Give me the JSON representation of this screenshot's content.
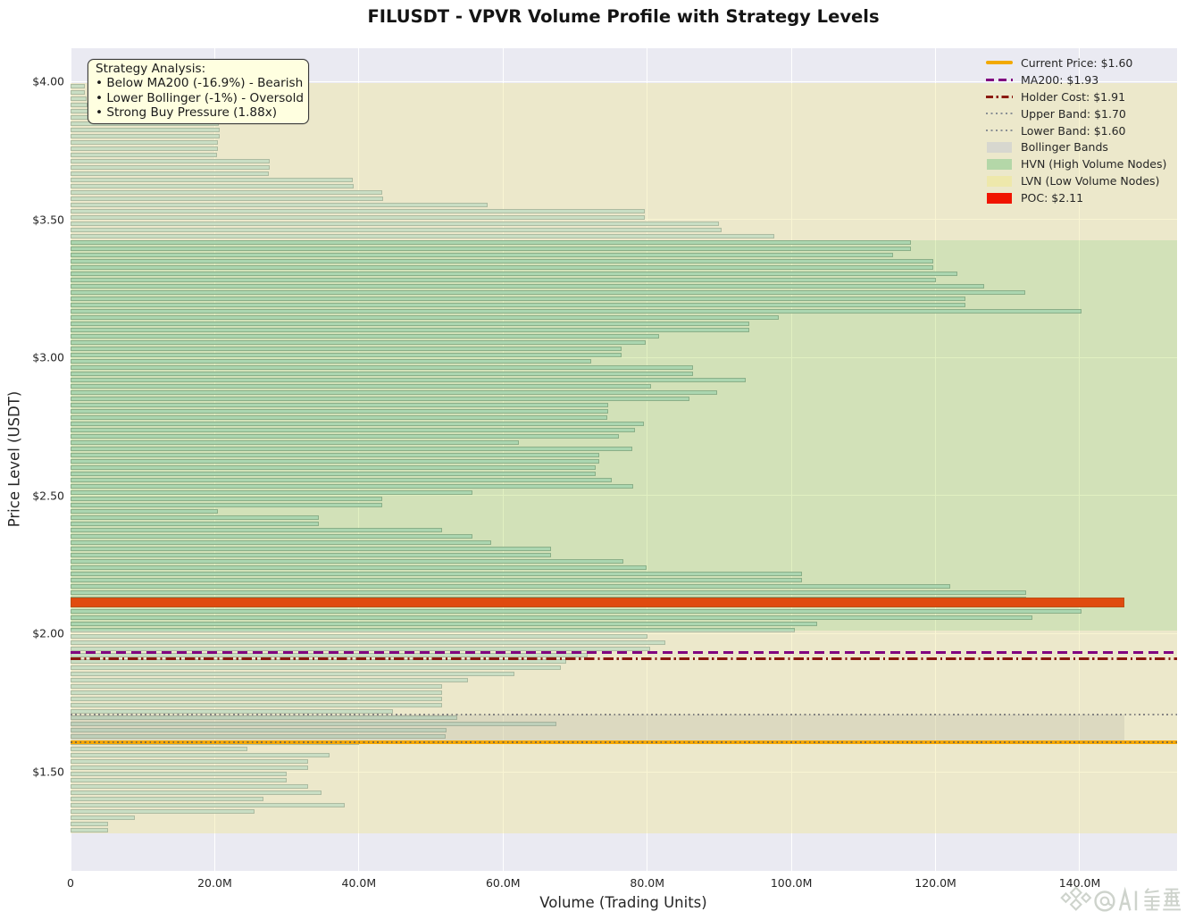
{
  "title": "FILUSDT - VPVR Volume Profile with Strategy Levels",
  "axes": {
    "xlabel": "Volume (Trading Units)",
    "ylabel": "Price Level (USDT)",
    "x_ticks": [
      {
        "value": 0,
        "label": "0"
      },
      {
        "value": 20,
        "label": "20.0M"
      },
      {
        "value": 40,
        "label": "40.0M"
      },
      {
        "value": 60,
        "label": "60.0M"
      },
      {
        "value": 80,
        "label": "80.0M"
      },
      {
        "value": 100,
        "label": "100.0M"
      },
      {
        "value": 120,
        "label": "120.0M"
      },
      {
        "value": 140,
        "label": "140.0M"
      }
    ],
    "y_ticks": [
      {
        "value": 1.5,
        "label": "$1.50"
      },
      {
        "value": 2.0,
        "label": "$2.00"
      },
      {
        "value": 2.5,
        "label": "$2.50"
      },
      {
        "value": 3.0,
        "label": "$3.00"
      },
      {
        "value": 3.5,
        "label": "$3.50"
      },
      {
        "value": 4.0,
        "label": "$4.00"
      }
    ]
  },
  "annotation": {
    "title": "Strategy Analysis:",
    "lines": [
      "• Below MA200 (-16.9%) - Bearish",
      "• Lower Bollinger (-1%) - Oversold",
      "• Strong Buy Pressure (1.88x)"
    ]
  },
  "legend": [
    {
      "kind": "line",
      "style": "solid",
      "color": "#f2a900",
      "weight": 4,
      "label": "Current Price: $1.60"
    },
    {
      "kind": "line",
      "style": "dashed",
      "color": "#800080",
      "weight": 3,
      "label": "MA200: $1.93"
    },
    {
      "kind": "line",
      "style": "dashdot",
      "color": "#8b1a10",
      "weight": 2.6,
      "label": "Holder Cost: $1.91"
    },
    {
      "kind": "line",
      "style": "dotted",
      "color": "#8a8f94",
      "weight": 2.2,
      "label": "Upper Band: $1.70"
    },
    {
      "kind": "line",
      "style": "dotted",
      "color": "#8a8f94",
      "weight": 2.2,
      "label": "Lower Band: $1.60"
    },
    {
      "kind": "patch",
      "color": "#d7d7cf",
      "label": "Bollinger Bands"
    },
    {
      "kind": "patch",
      "color": "#b4d7a8",
      "label": "HVN (High Volume Nodes)"
    },
    {
      "kind": "patch",
      "color": "#eee8ab",
      "label": "LVN (Low Volume Nodes)"
    },
    {
      "kind": "patch",
      "color": "#f01400",
      "label": "POC: $2.11"
    }
  ],
  "watermark": {
    "text": "@AI 看盘"
  },
  "chart_data": {
    "type": "bar",
    "orientation": "horizontal",
    "title": "FILUSDT - VPVR Volume Profile with Strategy Levels",
    "xlabel": "Volume (Trading Units)",
    "ylabel": "Price Level (USDT)",
    "xlim_m": [
      0,
      153.5
    ],
    "ylim": [
      1.14,
      4.12
    ],
    "price_bin_top": 3.9935,
    "bin_size": 0.022637,
    "volumes_m": [
      2.0,
      2.0,
      2.2,
      2.4,
      12.0,
      18.0,
      20.6,
      20.7,
      20.7,
      20.5,
      20.4,
      20.3,
      27.6,
      27.6,
      27.5,
      39.2,
      39.3,
      43.2,
      43.4,
      57.8,
      79.7,
      79.7,
      90.0,
      90.3,
      97.6,
      116.6,
      116.6,
      114.1,
      119.7,
      119.7,
      123.0,
      120.0,
      126.8,
      132.4,
      124.2,
      124.2,
      140.2,
      98.2,
      94.1,
      94.1,
      81.7,
      79.8,
      76.4,
      76.4,
      72.2,
      86.4,
      86.4,
      93.7,
      80.5,
      89.7,
      85.8,
      74.6,
      74.6,
      74.4,
      79.6,
      78.3,
      76.1,
      62.2,
      77.9,
      73.4,
      73.4,
      72.8,
      72.8,
      75.1,
      78.1,
      55.7,
      43.3,
      43.3,
      20.5,
      34.4,
      34.4,
      51.5,
      55.7,
      58.3,
      66.7,
      66.7,
      76.7,
      79.9,
      101.5,
      101.5,
      122.0,
      132.6,
      132.6,
      146.2,
      140.3,
      133.4,
      103.6,
      100.5,
      80.0,
      82.5,
      80.4,
      71.7,
      68.7,
      68.0,
      61.6,
      55.1,
      51.5,
      51.6,
      51.6,
      51.5,
      44.7,
      53.6,
      67.4,
      52.2,
      52.0,
      40.0,
      24.5,
      35.9,
      32.9,
      32.9,
      30.0,
      30.0,
      32.9,
      34.8,
      26.7,
      38.0,
      25.5,
      8.9,
      5.2,
      5.2
    ],
    "poc": {
      "index": 83,
      "price": 2.11,
      "volume_m": 146.2,
      "color": "#ff0000"
    },
    "zones": {
      "hvn": {
        "price_from": 2.012,
        "price_to": 3.423,
        "color": "rgba(154,205,50,0.30)"
      },
      "lvn": [
        {
          "price_from": 3.423,
          "price_to": 3.9935,
          "color": "rgba(240,230,140,0.38)"
        },
        {
          "price_from": 1.2771,
          "price_to": 2.012,
          "color": "rgba(240,230,140,0.38)"
        }
      ]
    },
    "levels": {
      "current_price": 1.6,
      "ma200": 1.93,
      "holder_cost": 1.91,
      "upper_band": 1.7,
      "lower_band": 1.6
    },
    "bollinger_fill": {
      "price_from": 1.6,
      "price_to": 1.7,
      "x_frac_end": 0.952
    },
    "bar_color": "lightblue",
    "legend_position": "upper right",
    "grid": true
  }
}
